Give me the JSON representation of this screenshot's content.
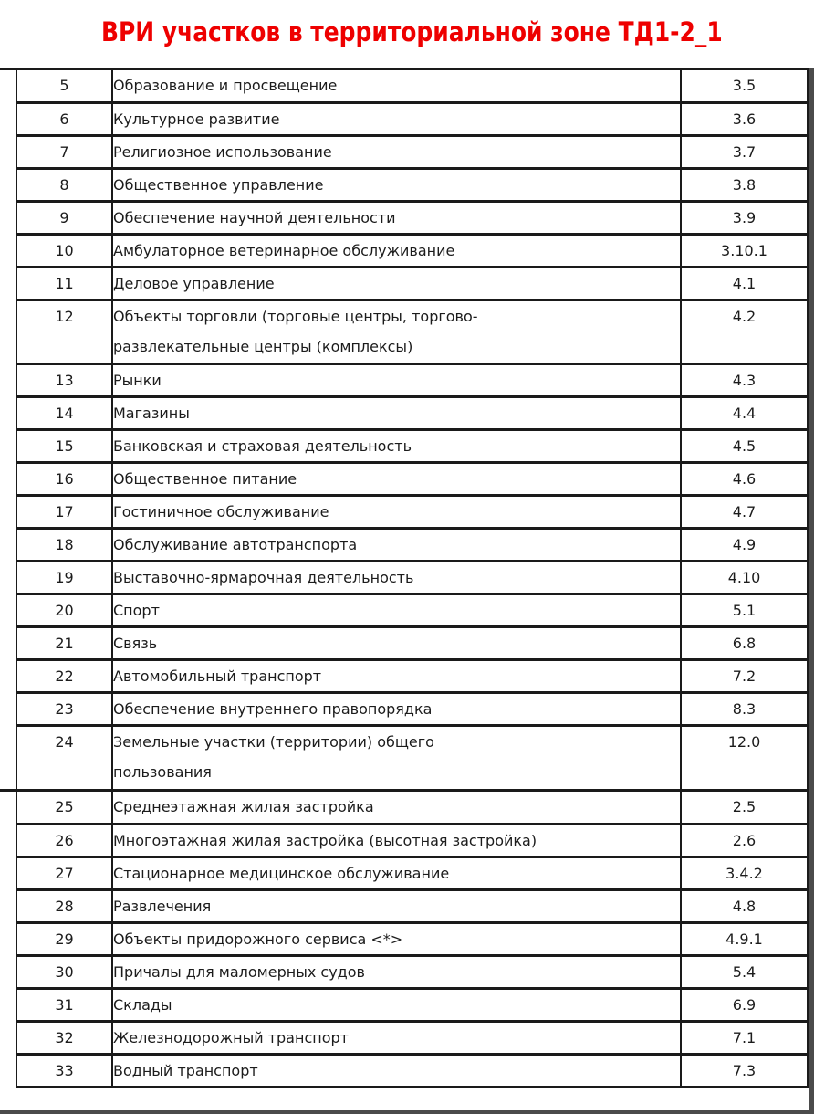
{
  "title": {
    "text": "ВРИ участков в территориальной зоне ТД1-2_1",
    "color": "#ee0000"
  },
  "table": {
    "sections": [
      {
        "rows": [
          {
            "num": "5",
            "name": "Образование и просвещение",
            "code": "3.5"
          },
          {
            "num": "6",
            "name": "Культурное развитие",
            "code": "3.6"
          },
          {
            "num": "7",
            "name": "Религиозное использование",
            "code": "3.7"
          },
          {
            "num": "8",
            "name": "Общественное управление",
            "code": "3.8"
          },
          {
            "num": "9",
            "name": "Обеспечение научной деятельности",
            "code": "3.9"
          },
          {
            "num": "10",
            "name": "Амбулаторное ветеринарное обслуживание",
            "code": "3.10.1"
          },
          {
            "num": "11",
            "name": "Деловое управление",
            "code": "4.1"
          },
          {
            "num": "12",
            "name": "Объекты торговли (торговые центры, торгово-\nразвлекательные центры (комплексы)",
            "code": "4.2"
          },
          {
            "num": "13",
            "name": "Рынки",
            "code": "4.3"
          },
          {
            "num": "14",
            "name": "Магазины",
            "code": "4.4"
          },
          {
            "num": "15",
            "name": "Банковская и страховая деятельность",
            "code": "4.5"
          },
          {
            "num": "16",
            "name": "Общественное питание",
            "code": "4.6"
          },
          {
            "num": "17",
            "name": "Гостиничное обслуживание",
            "code": "4.7"
          },
          {
            "num": "18",
            "name": "Обслуживание автотранспорта",
            "code": "4.9"
          },
          {
            "num": "19",
            "name": "Выставочно-ярмарочная деятельность",
            "code": "4.10"
          },
          {
            "num": "20",
            "name": "Спорт",
            "code": "5.1"
          },
          {
            "num": "21",
            "name": "Связь",
            "code": "6.8"
          },
          {
            "num": "22",
            "name": "Автомобильный транспорт",
            "code": "7.2"
          },
          {
            "num": "23",
            "name": "Обеспечение внутреннего правопорядка",
            "code": "8.3"
          },
          {
            "num": "24",
            "name": "Земельные участки (территории) общего\nпользования",
            "code": "12.0"
          }
        ]
      },
      {
        "rows": [
          {
            "num": "25",
            "name": "Среднеэтажная жилая застройка",
            "code": "2.5"
          },
          {
            "num": "26",
            "name": "Многоэтажная жилая застройка (высотная застройка)",
            "code": "2.6"
          },
          {
            "num": "27",
            "name": "Стационарное медицинское обслуживание",
            "code": "3.4.2"
          },
          {
            "num": "28",
            "name": "Развлечения",
            "code": "4.8"
          },
          {
            "num": "29",
            "name": "Объекты придорожного сервиса <*>",
            "code": "4.9.1"
          },
          {
            "num": "30",
            "name": "Причалы для маломерных судов",
            "code": "5.4"
          },
          {
            "num": "31",
            "name": "Склады",
            "code": "6.9"
          },
          {
            "num": "32",
            "name": "Железнодорожный транспорт",
            "code": "7.1"
          },
          {
            "num": "33",
            "name": "Водный транспорт",
            "code": "7.3"
          }
        ]
      }
    ]
  }
}
